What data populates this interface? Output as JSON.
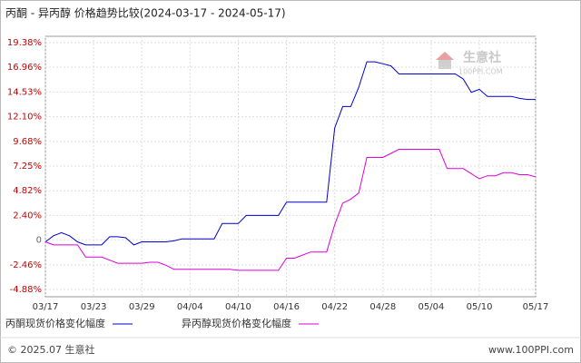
{
  "chart_data": {
    "type": "line",
    "title": "丙酮 - 异丙醇 价格趋势比较(2024-03-17 - 2024-05-17)",
    "watermark": "生意社",
    "watermark_site": "100PPI.COM",
    "footer_left": "© 2025.07 生意社",
    "footer_right": "www.100PPI.com",
    "categories": [
      "03/17",
      null,
      null,
      null,
      null,
      null,
      "03/23",
      null,
      null,
      null,
      null,
      null,
      "03/29",
      null,
      null,
      null,
      null,
      null,
      "04/04",
      null,
      null,
      null,
      null,
      null,
      "04/10",
      null,
      null,
      null,
      null,
      null,
      "04/16",
      null,
      null,
      null,
      null,
      null,
      "04/22",
      null,
      null,
      null,
      null,
      null,
      "04/28",
      null,
      null,
      null,
      null,
      null,
      "05/04",
      null,
      null,
      null,
      null,
      null,
      "05/10",
      null,
      null,
      null,
      null,
      null,
      null,
      "05/17"
    ],
    "series": [
      {
        "name": "丙酮现货价格变化幅度",
        "color": "#0000cc",
        "values": [
          -0.2,
          0.4,
          0.7,
          0.4,
          -0.2,
          -0.5,
          -0.5,
          -0.5,
          0.3,
          0.3,
          0.2,
          -0.5,
          -0.2,
          -0.2,
          -0.2,
          -0.2,
          -0.1,
          0.1,
          0.1,
          0.1,
          0.1,
          0.1,
          1.6,
          1.6,
          1.6,
          2.4,
          2.4,
          2.4,
          2.4,
          2.4,
          3.7,
          3.7,
          3.7,
          3.7,
          3.7,
          3.7,
          11.0,
          13.1,
          13.1,
          15.0,
          17.5,
          17.5,
          17.3,
          17.1,
          16.3,
          16.3,
          16.3,
          16.3,
          16.3,
          16.3,
          16.3,
          16.3,
          15.8,
          14.5,
          14.8,
          14.1,
          14.1,
          14.1,
          14.1,
          13.9,
          13.8,
          13.8
        ]
      },
      {
        "name": "异丙醇现货价格变化幅度",
        "color": "#dd00dd",
        "values": [
          -0.2,
          -0.5,
          -0.5,
          -0.5,
          -0.5,
          -1.7,
          -1.7,
          -1.7,
          -2.0,
          -2.3,
          -2.3,
          -2.3,
          -2.3,
          -2.2,
          -2.2,
          -2.5,
          -2.9,
          -2.9,
          -2.9,
          -2.9,
          -2.9,
          -2.9,
          -2.9,
          -2.9,
          -3.0,
          -3.0,
          -3.0,
          -3.0,
          -3.0,
          -3.0,
          -1.8,
          -1.8,
          -1.5,
          -1.2,
          -1.2,
          -1.2,
          1.5,
          3.6,
          4.0,
          4.6,
          8.1,
          8.1,
          8.1,
          8.5,
          8.9,
          8.9,
          8.9,
          8.9,
          8.9,
          8.9,
          7.0,
          7.0,
          7.0,
          6.5,
          6.0,
          6.3,
          6.3,
          6.6,
          6.6,
          6.4,
          6.4,
          6.2
        ]
      }
    ],
    "ylim": [
      -4.88,
      19.38
    ],
    "yticks": [
      {
        "value": 19.38,
        "label": "19.38%"
      },
      {
        "value": 16.96,
        "label": "16.96%"
      },
      {
        "value": 14.53,
        "label": "14.53%"
      },
      {
        "value": 12.1,
        "label": "12.10%"
      },
      {
        "value": 9.68,
        "label": "9.68%"
      },
      {
        "value": 7.25,
        "label": "7.25%"
      },
      {
        "value": 4.82,
        "label": "4.82%"
      },
      {
        "value": 2.4,
        "label": "2.40%"
      },
      0,
      {
        "value": -2.46,
        "label": "-2.46%"
      },
      {
        "value": -4.88,
        "label": "-4.88%"
      }
    ],
    "grid": true
  }
}
